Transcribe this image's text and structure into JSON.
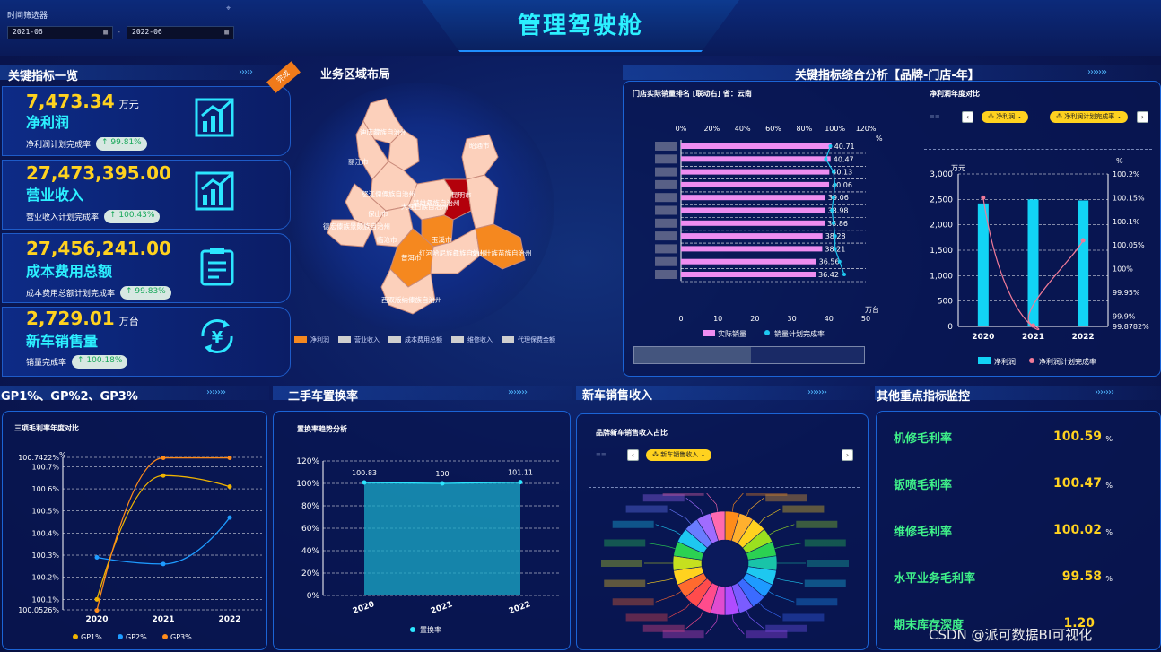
{
  "header": {
    "title": "管理驾驶舱",
    "filter_label": "时间筛选器",
    "date_from": "2021-06",
    "date_to": "2022-06"
  },
  "sections": {
    "kpi": "关键指标一览",
    "region": "业务区域布局",
    "analysis": "关键指标综合分析【品牌-门店-年】",
    "gp": "GP1%、GP%2、GP3%",
    "used_car": "二手车置换率",
    "new_car": "新车销售收入",
    "monitor": "其他重点指标监控"
  },
  "kpis": [
    {
      "value": "7,473.34",
      "unit": "万元",
      "label": "净利润",
      "rate_label": "净利润计划完成率",
      "rate": "↑ 99.81%"
    },
    {
      "value": "27,473,395.00",
      "unit": "",
      "label": "营业收入",
      "rate_label": "营业收入计划完成率",
      "rate": "↑ 100.43%"
    },
    {
      "value": "27,456,241.00",
      "unit": "",
      "label": "成本费用总额",
      "rate_label": "成本费用总额计划完成率",
      "rate": "↑ 99.83%"
    },
    {
      "value": "2,729.01",
      "unit": "万台",
      "label": "新车销售量",
      "rate_label": "销量完成率",
      "rate": "↑ 100.18%"
    }
  ],
  "ribbon": "完成",
  "map": {
    "cities": [
      "迪庆藏族自治州",
      "丽江市",
      "怒江傈僳族自治州",
      "大理白族自治州",
      "楚雄彝族自治州",
      "昆明市",
      "曲靖市",
      "保山市",
      "德宏傣族景颇族自治州",
      "临沧市",
      "玉溪市",
      "普洱市",
      "红河哈尼族彝族自治州",
      "文山壮族苗族自治州",
      "西双版纳傣族自治州",
      "昭通市"
    ],
    "legend": [
      "净利润",
      "营业收入",
      "成本费用总额",
      "维修收入",
      "代理保费金额"
    ],
    "legend_colors": [
      "#f5881f",
      "#cfcfcf",
      "#cfcfcf",
      "#cfcfcf",
      "#cfcfcf"
    ]
  },
  "store_chart": {
    "title": "门店实际销量排名 [联动右]   省：云南",
    "top_ticks": [
      "0%",
      "20%",
      "40%",
      "60%",
      "80%",
      "100%",
      "120%"
    ],
    "top_unit": "%",
    "bottom_ticks": [
      "0",
      "10",
      "20",
      "30",
      "40",
      "50"
    ],
    "bottom_unit": "万台",
    "values": [
      40.71,
      40.47,
      40.13,
      40.06,
      39.06,
      38.98,
      38.86,
      38.28,
      38.21,
      36.56,
      36.42
    ],
    "labels": [
      "40.71",
      "40.47",
      "40.13",
      "40.06",
      "39.06",
      "38.98",
      "38.86",
      "38.28",
      "38.21",
      "36.56",
      "36.42"
    ],
    "rate": [
      97,
      94,
      99,
      100,
      99,
      98,
      99,
      100,
      100,
      103,
      106
    ],
    "legend": [
      "实际销量",
      "销量计划完成率"
    ]
  },
  "yoy_chart": {
    "title": "净利润年度对比",
    "chips": [
      "净利润",
      "净利润计划完成率"
    ],
    "left_unit": "万元",
    "right_unit": "%",
    "left_ticks": [
      "3,000",
      "2,500",
      "2,000",
      "1,500",
      "1,000",
      "500",
      "0"
    ],
    "right_ticks": [
      "100.2%",
      "100.15%",
      "100.1%",
      "100.05%",
      "100%",
      "99.95%",
      "99.9%",
      "99.8782%"
    ],
    "years": [
      "2020",
      "2021",
      "2022"
    ],
    "bars": [
      2420,
      2500,
      2480
    ],
    "rate": [
      100.15,
      99.88,
      100.06
    ],
    "legend": [
      "净利润",
      "净利润计划完成率"
    ]
  },
  "gp_chart": {
    "title": "三项毛利率年度对比",
    "unit": "%",
    "y_ticks": [
      "100.7422%",
      "100.7%",
      "100.6%",
      "100.5%",
      "100.4%",
      "100.3%",
      "100.2%",
      "100.1%",
      "100.0526%"
    ],
    "years": [
      "2020",
      "2021",
      "2022"
    ],
    "series": [
      {
        "name": "GP1%",
        "values": [
          100.1,
          100.66,
          100.61
        ],
        "color": "#f0b400"
      },
      {
        "name": "GP2%",
        "values": [
          100.29,
          100.26,
          100.47
        ],
        "color": "#1e9bff"
      },
      {
        "name": "GP3%",
        "values": [
          100.05,
          100.74,
          100.74
        ],
        "color": "#ff8c1a"
      }
    ]
  },
  "used_chart": {
    "title": "置换率趋势分析",
    "y_ticks": [
      "120%",
      "100%",
      "80%",
      "60%",
      "40%",
      "20%",
      "0%"
    ],
    "years": [
      "2020",
      "2021",
      "2022"
    ],
    "values": [
      100.83,
      100,
      101.11
    ],
    "labels": [
      "100.83",
      "100",
      "101.11"
    ],
    "legend": "置换率"
  },
  "newcar_chart": {
    "title": "品牌新车销售收入占比",
    "chip": "新车销售收入"
  },
  "monitor": [
    {
      "label": "机修毛利率",
      "value": "100.59",
      "unit": "%"
    },
    {
      "label": "钣喷毛利率",
      "value": "100.47",
      "unit": "%"
    },
    {
      "label": "维修毛利率",
      "value": "100.02",
      "unit": "%"
    },
    {
      "label": "水平业务毛利率",
      "value": "99.58",
      "unit": "%"
    },
    {
      "label": "期末库存深度",
      "value": "1.20",
      "unit": ""
    }
  ],
  "watermark": "CSDN @派可数据BI可视化"
}
